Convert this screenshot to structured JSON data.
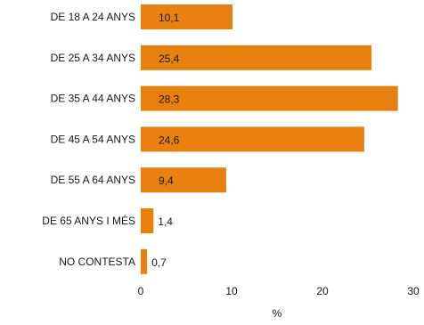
{
  "chart_data": {
    "type": "bar",
    "orientation": "horizontal",
    "categories": [
      "DE 18 A 24 ANYS",
      "DE 25 A 34 ANYS",
      "DE 35 A 44 ANYS",
      "DE 45 A 54 ANYS",
      "DE 55 A 64 ANYS",
      "DE 65 ANYS I MÉS",
      "NO CONTESTA"
    ],
    "values": [
      10.1,
      25.4,
      28.3,
      24.6,
      9.4,
      1.4,
      0.7
    ],
    "data_labels": [
      "10,1",
      "25,4",
      "28,3",
      "24,6",
      "9,4",
      "1,4",
      "0,7"
    ],
    "xlabel": "%",
    "xlim": [
      0,
      30
    ],
    "xticks": [
      0,
      10,
      20,
      30
    ],
    "grid": false,
    "bar_color": "#E8800F"
  }
}
